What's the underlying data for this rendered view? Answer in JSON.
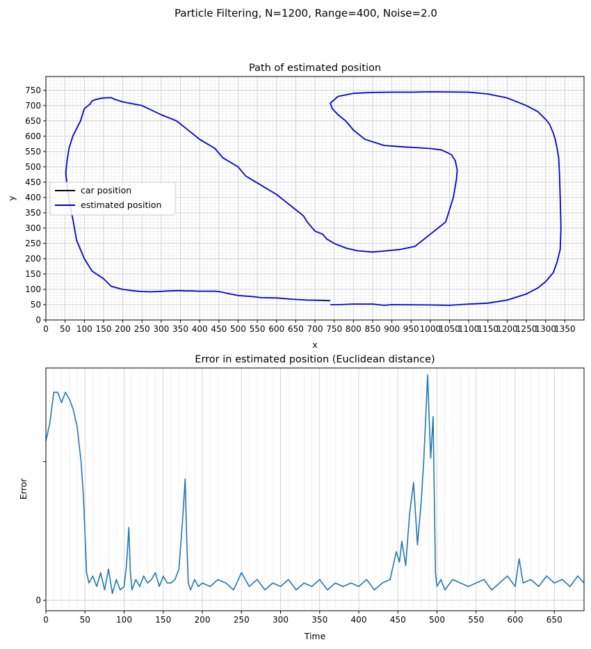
{
  "figure": {
    "suptitle": "Particle Filtering, N=1200, Range=400, Noise=2.0"
  },
  "chart_data": [
    {
      "type": "line",
      "title": "Path of estimated position",
      "xlabel": "x",
      "ylabel": "y",
      "xlim": [
        0,
        1400
      ],
      "ylim": [
        0,
        795
      ],
      "xticks": [
        0,
        50,
        100,
        150,
        200,
        250,
        300,
        350,
        400,
        450,
        500,
        550,
        600,
        650,
        700,
        750,
        800,
        850,
        900,
        950,
        1000,
        1050,
        1100,
        1150,
        1200,
        1250,
        1300,
        1350
      ],
      "yticks": [
        0,
        50,
        100,
        150,
        200,
        250,
        300,
        350,
        400,
        450,
        500,
        550,
        600,
        650,
        700,
        750
      ],
      "grid": true,
      "minor_grid": true,
      "legend": {
        "placement": "center-left",
        "entries": [
          "car position",
          "estimated position"
        ]
      },
      "colors": {
        "car position": "#000000",
        "estimated position": "#0000cc"
      },
      "series": [
        {
          "name": "estimated position",
          "x": [
            740,
            760,
            800,
            850,
            880,
            900,
            1000,
            1050,
            1100,
            1150,
            1200,
            1250,
            1280,
            1300,
            1320,
            1330,
            1338,
            1340,
            1338,
            1336,
            1334,
            1330,
            1325,
            1320,
            1310,
            1300,
            1280,
            1250,
            1220,
            1200,
            1150,
            1100,
            1000,
            950,
            900,
            850,
            800,
            760,
            740,
            745,
            760,
            780,
            800,
            830,
            880,
            920,
            960,
            1000,
            1030,
            1055,
            1065,
            1070,
            1068,
            1060,
            1040,
            1000,
            960,
            920,
            880,
            850,
            810,
            780,
            750,
            730,
            720,
            700,
            690,
            680,
            670,
            650,
            620,
            600,
            560,
            520,
            500,
            460,
            440,
            400,
            380,
            360,
            340,
            300,
            250,
            200,
            180,
            170,
            150,
            140,
            130,
            120,
            115,
            100,
            90,
            70,
            60,
            55,
            52,
            55,
            60,
            70,
            80,
            100,
            120,
            150,
            170,
            200,
            230,
            250,
            270,
            290,
            320,
            350,
            360,
            380,
            400,
            440,
            450,
            480,
            500,
            540,
            560,
            600,
            640,
            680,
            720,
            740
          ],
          "y": [
            50,
            50,
            52,
            52,
            48,
            50,
            49,
            48,
            52,
            55,
            65,
            85,
            105,
            125,
            155,
            190,
            230,
            300,
            400,
            480,
            530,
            560,
            590,
            610,
            640,
            655,
            680,
            700,
            715,
            725,
            738,
            744,
            745,
            744,
            744,
            743,
            740,
            730,
            708,
            690,
            670,
            650,
            620,
            590,
            570,
            566,
            563,
            560,
            555,
            540,
            520,
            490,
            460,
            400,
            320,
            280,
            240,
            230,
            225,
            222,
            226,
            235,
            250,
            265,
            280,
            290,
            305,
            320,
            340,
            360,
            390,
            410,
            440,
            470,
            500,
            530,
            560,
            590,
            610,
            630,
            650,
            670,
            700,
            712,
            720,
            726,
            725,
            723,
            720,
            715,
            705,
            690,
            650,
            600,
            560,
            520,
            480,
            440,
            390,
            330,
            260,
            200,
            160,
            135,
            110,
            100,
            95,
            93,
            92,
            93,
            95,
            96,
            95,
            95,
            94,
            94,
            93,
            85,
            80,
            76,
            73,
            72,
            68,
            65,
            64,
            63
          ]
        }
      ]
    },
    {
      "type": "line",
      "title": "Error in estimated position (Euclidean distance)",
      "xlabel": "Time",
      "ylabel": "Error",
      "xlim": [
        0,
        688
      ],
      "ylim": [
        -15,
        335
      ],
      "xticks": [
        0,
        50,
        100,
        150,
        200,
        250,
        300,
        350,
        400,
        450,
        500,
        550,
        600,
        650
      ],
      "yticks": [
        0
      ],
      "grid": true,
      "minor_grid": true,
      "colors": {
        "error": "#1f77b4"
      },
      "series": [
        {
          "name": "",
          "x": [
            0,
            5,
            10,
            15,
            20,
            25,
            30,
            35,
            40,
            45,
            48,
            52,
            55,
            60,
            65,
            70,
            75,
            80,
            85,
            90,
            95,
            100,
            103,
            106,
            108,
            110,
            115,
            120,
            125,
            130,
            135,
            140,
            145,
            150,
            155,
            160,
            165,
            170,
            175,
            178,
            180,
            182,
            185,
            190,
            195,
            200,
            210,
            220,
            230,
            240,
            250,
            260,
            270,
            280,
            290,
            300,
            310,
            320,
            330,
            340,
            350,
            360,
            370,
            380,
            390,
            400,
            410,
            420,
            430,
            440,
            448,
            452,
            455,
            460,
            465,
            470,
            475,
            480,
            483,
            486,
            488,
            490,
            492,
            495,
            498,
            500,
            505,
            510,
            520,
            530,
            540,
            550,
            560,
            570,
            580,
            590,
            600,
            605,
            610,
            620,
            630,
            640,
            650,
            660,
            670,
            680,
            688
          ],
          "y": [
            230,
            255,
            300,
            300,
            285,
            300,
            290,
            275,
            250,
            200,
            150,
            40,
            25,
            35,
            20,
            40,
            15,
            45,
            10,
            30,
            15,
            20,
            50,
            105,
            40,
            15,
            30,
            20,
            35,
            25,
            30,
            40,
            20,
            35,
            25,
            25,
            30,
            45,
            120,
            175,
            90,
            25,
            15,
            30,
            20,
            25,
            20,
            30,
            25,
            15,
            40,
            20,
            30,
            15,
            25,
            20,
            30,
            15,
            25,
            20,
            30,
            15,
            25,
            20,
            25,
            20,
            30,
            15,
            25,
            30,
            70,
            55,
            85,
            50,
            125,
            170,
            80,
            145,
            200,
            275,
            325,
            260,
            205,
            265,
            40,
            20,
            30,
            15,
            30,
            25,
            20,
            25,
            30,
            15,
            25,
            35,
            20,
            60,
            25,
            30,
            20,
            35,
            25,
            30,
            20,
            35,
            25
          ]
        }
      ]
    }
  ]
}
